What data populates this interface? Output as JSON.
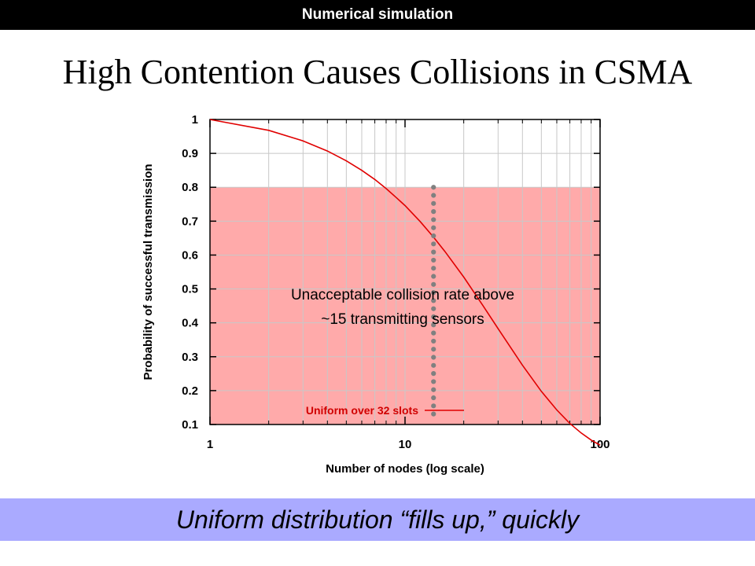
{
  "slide": {
    "header": "Numerical simulation",
    "title": "High Contention Causes Collisions in CSMA",
    "footer": "Uniform distribution “fills up,” quickly"
  },
  "chart_data": {
    "type": "line",
    "xlabel": "Number of nodes (log scale)",
    "ylabel": "Probability of successful transmission",
    "x_scale": "log",
    "xlim": [
      1,
      100
    ],
    "ylim": [
      0.1,
      1
    ],
    "x_ticks": [
      "1",
      "10",
      "100"
    ],
    "y_ticks": [
      "0.1",
      "0.2",
      "0.3",
      "0.4",
      "0.5",
      "0.6",
      "0.7",
      "0.8",
      "0.9",
      "1"
    ],
    "grid": true,
    "shaded_region": {
      "y_max": 0.8,
      "color": "#ffaaaa"
    },
    "threshold_line": {
      "x": 14,
      "style": "dotted",
      "color": "#808080"
    },
    "annotation": [
      "Unacceptable collision rate above",
      "~15 transmitting sensors"
    ],
    "legend_position": "bottom-center",
    "series": [
      {
        "name": "Uniform over 32 slots",
        "color": "#e00000",
        "x": [
          1,
          2,
          3,
          4,
          5,
          6,
          7,
          8,
          9,
          10,
          12,
          14,
          16,
          20,
          25,
          30,
          40,
          50,
          60,
          70,
          80,
          90,
          100
        ],
        "y": [
          1.0,
          0.968,
          0.937,
          0.907,
          0.878,
          0.85,
          0.823,
          0.796,
          0.77,
          0.746,
          0.698,
          0.653,
          0.611,
          0.535,
          0.452,
          0.383,
          0.275,
          0.198,
          0.143,
          0.103,
          0.075,
          0.054,
          0.039
        ]
      }
    ]
  }
}
